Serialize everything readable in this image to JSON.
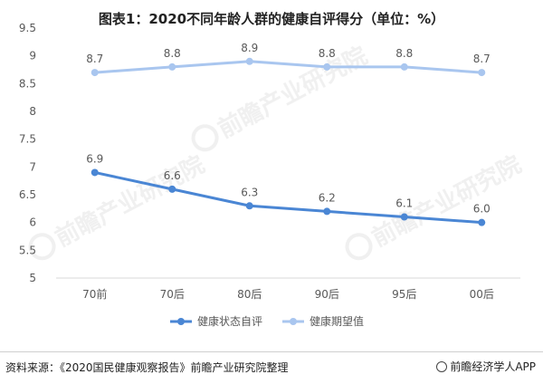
{
  "title": "图表1：2020不同年龄人群的健康自评得分（单位：%）",
  "source_text": "资料来源：《2020国民健康观察报告》前瞻产业研究院整理",
  "brand_text": "前瞻经济学人APP",
  "watermark_text": "前瞻产业研究院",
  "colors": {
    "series1": "#4a86d4",
    "series2": "#a9c6ef",
    "axis": "#d9d9d9",
    "text": "#595959"
  },
  "chart_data": {
    "type": "line",
    "categories": [
      "70前",
      "70后",
      "80后",
      "90后",
      "95后",
      "00后"
    ],
    "ylim": [
      5,
      9.5
    ],
    "yticks": [
      "5",
      "5.5",
      "6",
      "6.5",
      "7",
      "7.5",
      "8",
      "8.5",
      "9",
      "9.5"
    ],
    "series": [
      {
        "name": "健康状态自评",
        "values": [
          6.9,
          6.6,
          6.3,
          6.2,
          6.1,
          6.0
        ],
        "labels": [
          "6.9",
          "6.6",
          "6.3",
          "6.2",
          "6.1",
          "6.0"
        ]
      },
      {
        "name": "健康期望值",
        "values": [
          8.7,
          8.8,
          8.9,
          8.8,
          8.8,
          8.7
        ],
        "labels": [
          "8.7",
          "8.8",
          "8.9",
          "8.8",
          "8.8",
          "8.7"
        ]
      }
    ],
    "legend_position": "bottom",
    "grid": false
  }
}
